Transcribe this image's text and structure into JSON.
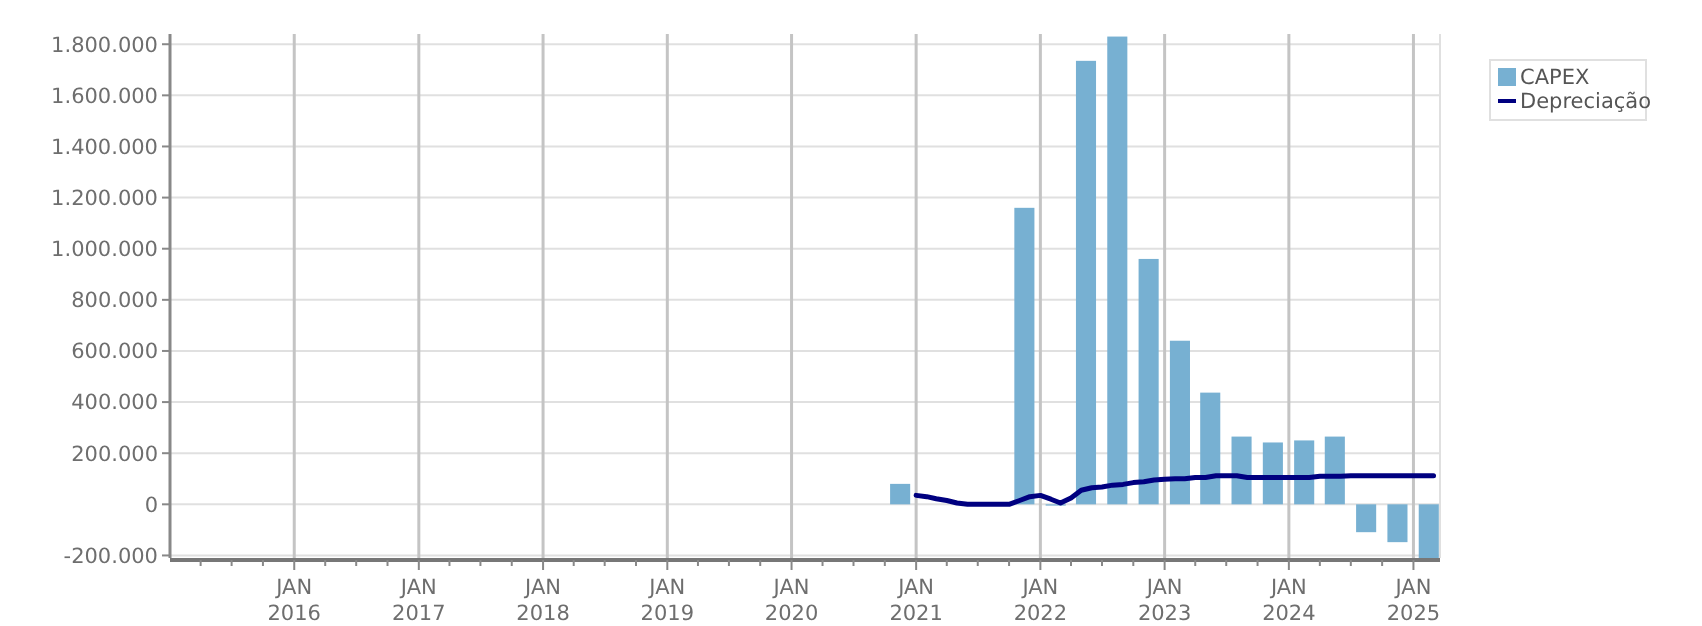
{
  "chart_data": {
    "type": "bar",
    "xlim": [
      "2015-01-01",
      "2025-03-20"
    ],
    "ylim": [
      -210000,
      1840000
    ],
    "yticks": [
      {
        "value": -200000,
        "label": "-200.000"
      },
      {
        "value": 0,
        "label": "0"
      },
      {
        "value": 200000,
        "label": "200.000"
      },
      {
        "value": 400000,
        "label": "400.000"
      },
      {
        "value": 600000,
        "label": "600.000"
      },
      {
        "value": 800000,
        "label": "800.000"
      },
      {
        "value": 1000000,
        "label": "1.000.000"
      },
      {
        "value": 1200000,
        "label": "1.200.000"
      },
      {
        "value": 1400000,
        "label": "1.400.000"
      },
      {
        "value": 1600000,
        "label": "1.600.000"
      },
      {
        "value": 1800000,
        "label": "1.800.000"
      }
    ],
    "xticks": [
      {
        "value": "2015-04-01",
        "label": null
      },
      {
        "value": "2015-07-01",
        "label": null
      },
      {
        "value": "2015-10-01",
        "label": null
      },
      {
        "value": "2016-01-01",
        "label": "JAN 2016"
      },
      {
        "value": "2016-04-01",
        "label": null
      },
      {
        "value": "2016-07-01",
        "label": null
      },
      {
        "value": "2016-10-01",
        "label": null
      },
      {
        "value": "2017-01-01",
        "label": "JAN 2017"
      },
      {
        "value": "2017-04-01",
        "label": null
      },
      {
        "value": "2017-07-01",
        "label": null
      },
      {
        "value": "2017-10-01",
        "label": null
      },
      {
        "value": "2018-01-01",
        "label": "JAN 2018"
      },
      {
        "value": "2018-04-01",
        "label": null
      },
      {
        "value": "2018-07-01",
        "label": null
      },
      {
        "value": "2018-10-01",
        "label": null
      },
      {
        "value": "2019-01-01",
        "label": "JAN 2019"
      },
      {
        "value": "2019-04-01",
        "label": null
      },
      {
        "value": "2019-07-01",
        "label": null
      },
      {
        "value": "2019-10-01",
        "label": null
      },
      {
        "value": "2020-01-01",
        "label": "JAN 2020"
      },
      {
        "value": "2020-04-01",
        "label": null
      },
      {
        "value": "2020-07-01",
        "label": null
      },
      {
        "value": "2020-10-01",
        "label": null
      },
      {
        "value": "2021-01-01",
        "label": "JAN 2021"
      },
      {
        "value": "2021-04-01",
        "label": null
      },
      {
        "value": "2021-07-01",
        "label": null
      },
      {
        "value": "2021-10-01",
        "label": null
      },
      {
        "value": "2022-01-01",
        "label": "JAN 2022"
      },
      {
        "value": "2022-04-01",
        "label": null
      },
      {
        "value": "2022-07-01",
        "label": null
      },
      {
        "value": "2022-10-01",
        "label": null
      },
      {
        "value": "2023-01-01",
        "label": "JAN 2023"
      },
      {
        "value": "2023-04-01",
        "label": null
      },
      {
        "value": "2023-07-01",
        "label": null
      },
      {
        "value": "2023-10-01",
        "label": null
      },
      {
        "value": "2024-01-01",
        "label": "JAN 2024"
      },
      {
        "value": "2024-04-01",
        "label": null
      },
      {
        "value": "2024-07-01",
        "label": null
      },
      {
        "value": "2024-10-01",
        "label": null
      },
      {
        "value": "2025-01-01",
        "label": "JAN 2025"
      }
    ],
    "grid": true,
    "legend": "top right",
    "series": [
      {
        "name": "CAPEX",
        "color": "#77b0d2",
        "x": [
          "2020-11-15",
          "2021-11-15",
          "2022-02-15",
          "2022-05-15",
          "2022-08-15",
          "2022-11-15",
          "2023-02-15",
          "2023-05-15",
          "2023-08-15",
          "2023-11-15",
          "2024-02-15",
          "2024-05-15",
          "2024-08-15",
          "2024-11-15",
          "2025-02-15"
        ],
        "values": [
          80000,
          1160000,
          -5000,
          1735000,
          1830000,
          960000,
          640000,
          437000,
          265000,
          242000,
          250000,
          265000,
          -109000,
          -148000,
          -210000
        ]
      },
      {
        "name": "Depreciação",
        "type": "line",
        "color": "#000080",
        "x": [
          "2021-01",
          "2021-02",
          "2021-03",
          "2021-04",
          "2021-05",
          "2021-06",
          "2021-07",
          "2021-08",
          "2021-09",
          "2021-10",
          "2021-11",
          "2021-12",
          "2022-01",
          "2022-02",
          "2022-03",
          "2022-04",
          "2022-05",
          "2022-06",
          "2022-07",
          "2022-08",
          "2022-09",
          "2022-10",
          "2022-11",
          "2022-12",
          "2023-01",
          "2023-02",
          "2023-03",
          "2023-04",
          "2023-05",
          "2023-06",
          "2023-07",
          "2023-08",
          "2023-09",
          "2023-10",
          "2023-11",
          "2023-12",
          "2024-01",
          "2024-02",
          "2024-03",
          "2024-04",
          "2024-05",
          "2024-06",
          "2024-07",
          "2024-08",
          "2024-09",
          "2024-10",
          "2024-11",
          "2024-12",
          "2025-01",
          "2025-02",
          "2025-03"
        ],
        "values": [
          35000,
          30000,
          22000,
          15000,
          5000,
          0,
          0,
          0,
          0,
          0,
          15000,
          30000,
          35000,
          20000,
          5000,
          25000,
          55000,
          65000,
          68000,
          75000,
          78000,
          85000,
          88000,
          95000,
          98000,
          100000,
          100000,
          105000,
          105000,
          112000,
          112000,
          112000,
          105000,
          105000,
          105000,
          105000,
          105000,
          105000,
          105000,
          110000,
          110000,
          110000,
          112000,
          112000,
          112000,
          112000,
          112000,
          112000,
          112000,
          112000,
          112000
        ]
      }
    ]
  }
}
